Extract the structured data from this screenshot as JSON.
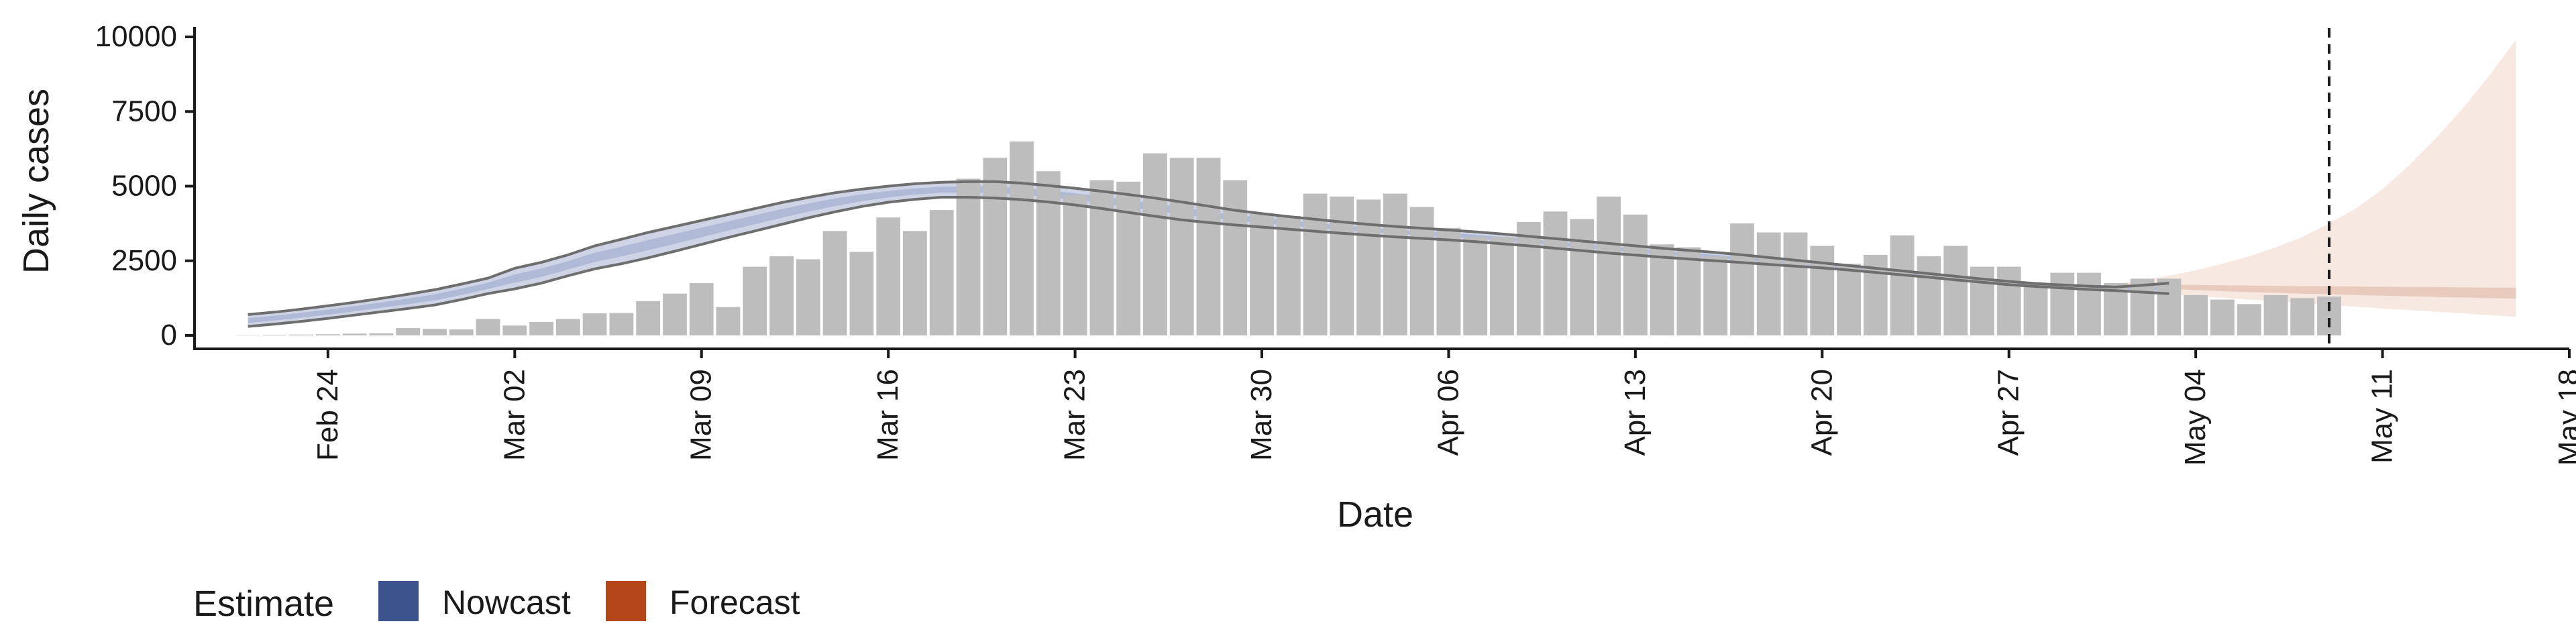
{
  "chart_data": {
    "type": "bar",
    "xlabel": "Date",
    "ylabel": "Daily cases",
    "ylim": [
      0,
      10000
    ],
    "yticks": [
      0,
      2500,
      5000,
      7500,
      10000
    ],
    "xlim": [
      "2020-02-19",
      "2020-05-18"
    ],
    "xticks": [
      {
        "date": "2020-02-24",
        "label": "Feb 24"
      },
      {
        "date": "2020-03-02",
        "label": "Mar 02"
      },
      {
        "date": "2020-03-09",
        "label": "Mar 09"
      },
      {
        "date": "2020-03-16",
        "label": "Mar 16"
      },
      {
        "date": "2020-03-23",
        "label": "Mar 23"
      },
      {
        "date": "2020-03-30",
        "label": "Mar 30"
      },
      {
        "date": "2020-04-06",
        "label": "Apr 06"
      },
      {
        "date": "2020-04-13",
        "label": "Apr 13"
      },
      {
        "date": "2020-04-20",
        "label": "Apr 20"
      },
      {
        "date": "2020-04-27",
        "label": "Apr 27"
      },
      {
        "date": "2020-05-04",
        "label": "May 04"
      },
      {
        "date": "2020-05-11",
        "label": "May 11"
      },
      {
        "date": "2020-05-18",
        "label": "May 18"
      }
    ],
    "bars": {
      "start_date": "2020-02-21",
      "values": [
        10,
        20,
        30,
        40,
        60,
        70,
        250,
        220,
        200,
        550,
        330,
        450,
        550,
        740,
        750,
        1150,
        1400,
        1750,
        950,
        2300,
        2650,
        2550,
        3500,
        2800,
        3950,
        3500,
        4200,
        5250,
        5950,
        6500,
        5500,
        4700,
        5200,
        5150,
        6100,
        5950,
        5950,
        5200,
        4100,
        4000,
        4750,
        4650,
        4550,
        4750,
        4300,
        3600,
        3300,
        3300,
        3800,
        4150,
        3900,
        4650,
        4050,
        3050,
        2950,
        2650,
        3750,
        3450,
        3450,
        3000,
        2400,
        2700,
        3350,
        2650,
        3000,
        2300,
        2300,
        1700,
        2100,
        2100,
        1750,
        1900,
        1900,
        1350,
        1200,
        1050,
        1350,
        1250,
        1300
      ]
    },
    "series": [
      {
        "name": "Nowcast",
        "start_date": "2020-02-21",
        "lower": [
          300,
          380,
          470,
          570,
          680,
          790,
          900,
          1020,
          1200,
          1400,
          1560,
          1750,
          2000,
          2230,
          2400,
          2600,
          2820,
          3050,
          3280,
          3500,
          3720,
          3940,
          4140,
          4320,
          4460,
          4560,
          4630,
          4630,
          4600,
          4550,
          4470,
          4370,
          4250,
          4120,
          3990,
          3870,
          3780,
          3700,
          3630,
          3560,
          3490,
          3420,
          3360,
          3300,
          3250,
          3200,
          3140,
          3070,
          3000,
          2920,
          2840,
          2760,
          2690,
          2620,
          2560,
          2500,
          2440,
          2380,
          2320,
          2260,
          2190,
          2110,
          2030,
          1950,
          1860,
          1780,
          1700,
          1640,
          1590,
          1540,
          1500,
          1450,
          1400
        ],
        "upper": [
          700,
          780,
          880,
          990,
          1110,
          1240,
          1380,
          1530,
          1720,
          1920,
          2250,
          2450,
          2700,
          3000,
          3220,
          3450,
          3650,
          3850,
          4050,
          4250,
          4450,
          4620,
          4780,
          4900,
          5000,
          5080,
          5130,
          5150,
          5150,
          5100,
          5020,
          4930,
          4830,
          4720,
          4600,
          4470,
          4330,
          4190,
          4080,
          3980,
          3890,
          3800,
          3720,
          3650,
          3590,
          3530,
          3470,
          3400,
          3320,
          3240,
          3160,
          3080,
          3000,
          2920,
          2850,
          2780,
          2700,
          2610,
          2520,
          2430,
          2340,
          2250,
          2160,
          2070,
          1980,
          1890,
          1810,
          1740,
          1690,
          1650,
          1620,
          1680,
          1750
        ]
      },
      {
        "name": "Forecast",
        "start_date": "2020-05-01",
        "lower": [
          1550,
          1450,
          1380,
          1320,
          1260,
          1200,
          1140,
          1080,
          1020,
          960,
          900,
          850,
          790,
          740,
          680,
          620
        ],
        "mid_lower": [
          1640,
          1600,
          1560,
          1520,
          1480,
          1450,
          1430,
          1400,
          1380,
          1350,
          1330,
          1310,
          1290,
          1270,
          1250,
          1230
        ],
        "mid_upper": [
          1740,
          1720,
          1700,
          1690,
          1680,
          1670,
          1660,
          1650,
          1650,
          1640,
          1630,
          1620,
          1620,
          1610,
          1600,
          1600
        ],
        "upper": [
          1720,
          1850,
          2000,
          2180,
          2400,
          2650,
          2950,
          3300,
          3750,
          4250,
          4900,
          5700,
          6600,
          7600,
          8700,
          9900
        ]
      }
    ],
    "vline_date": "2020-05-09",
    "legend": {
      "title": "Estimate",
      "position": "bottom-left",
      "items": [
        {
          "label": "Nowcast",
          "color": "#3c538e"
        },
        {
          "label": "Forecast",
          "color": "#b5461a"
        }
      ]
    },
    "colors": {
      "bar": "#bdbdbd",
      "nowcast_band": "#c6cde0",
      "nowcast_band_inner": "#a8b3d2",
      "forecast_band": "#f6e4dc",
      "forecast_band_inner": "#e3c3b3",
      "band_line": "#6e6e6e",
      "vline": "#1a1a1a",
      "axis": "#1a1a1a"
    },
    "grid": false
  }
}
